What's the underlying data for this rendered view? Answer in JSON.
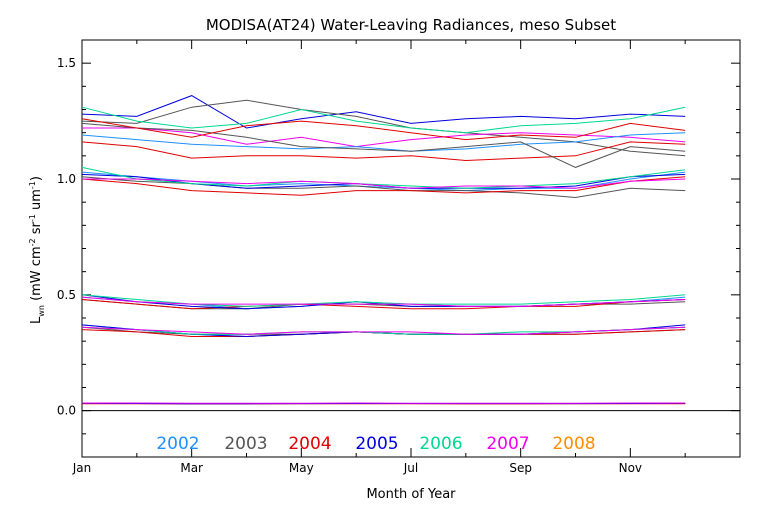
{
  "chart_data": {
    "type": "line",
    "title": "MODISA(AT24) Water-Leaving Radiances, meso Subset",
    "xlabel": "Month of Year",
    "ylabel": {
      "main": "L",
      "sub": "wn",
      "rest": "  (mW cm",
      "sup1": "-2",
      "rest2": " sr",
      "sup2": "-1",
      "rest3": " um",
      "sup3": "-1",
      "close": ")"
    },
    "xlim": [
      1,
      13
    ],
    "ylim": [
      -0.2,
      1.6
    ],
    "x_ticks": [
      {
        "value": 1,
        "label": "Jan"
      },
      {
        "value": 3,
        "label": "Mar"
      },
      {
        "value": 5,
        "label": "May"
      },
      {
        "value": 7,
        "label": "Jul"
      },
      {
        "value": 9,
        "label": "Sep"
      },
      {
        "value": 11,
        "label": "Nov"
      }
    ],
    "y_ticks": [
      {
        "value": 0.0,
        "label": "0.0"
      },
      {
        "value": 0.5,
        "label": "0.5"
      },
      {
        "value": 1.0,
        "label": "1.0"
      },
      {
        "value": 1.5,
        "label": "1.5"
      }
    ],
    "zero_line": 0.0,
    "legend_placement": "bottom-inside",
    "legend": [
      {
        "label": "2002",
        "color": "#1e90ff"
      },
      {
        "label": "2003",
        "color": "#555555"
      },
      {
        "label": "2004",
        "color": "#e00000"
      },
      {
        "label": "2005",
        "color": "#0000dd"
      },
      {
        "label": "2006",
        "color": "#00d890"
      },
      {
        "label": "2007",
        "color": "#ee00ee"
      },
      {
        "label": "2008",
        "color": "#ff8c00"
      }
    ],
    "x": [
      1,
      2,
      3,
      4,
      5,
      6,
      7,
      8,
      9,
      10,
      11,
      12
    ],
    "bands": [
      {
        "band": "high",
        "series": [
          {
            "color": "#0000dd",
            "values": [
              1.28,
              1.27,
              1.36,
              1.22,
              1.26,
              1.29,
              1.24,
              1.26,
              1.27,
              1.26,
              1.28,
              1.27
            ]
          },
          {
            "color": "#555555",
            "values": [
              1.25,
              1.24,
              1.31,
              1.34,
              1.3,
              1.27,
              1.22,
              1.2,
              1.18,
              1.16,
              1.12,
              1.1
            ]
          },
          {
            "color": "#00d890",
            "values": [
              1.31,
              1.25,
              1.22,
              1.24,
              1.3,
              1.25,
              1.22,
              1.2,
              1.23,
              1.24,
              1.26,
              1.31
            ]
          },
          {
            "color": "#ee00ee",
            "values": [
              1.22,
              1.22,
              1.2,
              1.15,
              1.18,
              1.14,
              1.17,
              1.19,
              1.2,
              1.19,
              1.18,
              1.16
            ]
          },
          {
            "color": "#e00000",
            "values": [
              1.16,
              1.14,
              1.09,
              1.1,
              1.1,
              1.09,
              1.1,
              1.08,
              1.09,
              1.1,
              1.16,
              1.15
            ]
          },
          {
            "color": "#1e90ff",
            "values": [
              1.19,
              1.17,
              1.15,
              1.14,
              1.13,
              1.14,
              1.12,
              1.13,
              1.15,
              1.16,
              1.19,
              1.2
            ]
          },
          {
            "color": "#555555",
            "values": [
              1.24,
              1.22,
              1.21,
              1.18,
              1.14,
              1.13,
              1.12,
              1.14,
              1.16,
              1.05,
              1.14,
              1.12
            ]
          },
          {
            "color": "#e00000",
            "values": [
              1.26,
              1.22,
              1.18,
              1.23,
              1.25,
              1.23,
              1.2,
              1.17,
              1.19,
              1.18,
              1.24,
              1.21
            ]
          }
        ]
      },
      {
        "band": "upper-mid",
        "series": [
          {
            "color": "#1e90ff",
            "values": [
              1.03,
              1.01,
              0.99,
              0.97,
              0.98,
              0.97,
              0.96,
              0.95,
              0.96,
              0.96,
              1.0,
              1.03
            ]
          },
          {
            "color": "#555555",
            "values": [
              1.01,
              0.99,
              0.98,
              0.96,
              0.96,
              0.97,
              0.95,
              0.95,
              0.94,
              0.92,
              0.96,
              0.95
            ]
          },
          {
            "color": "#e00000",
            "values": [
              1.0,
              0.98,
              0.95,
              0.94,
              0.93,
              0.95,
              0.95,
              0.94,
              0.95,
              0.95,
              0.99,
              1.01
            ]
          },
          {
            "color": "#0000dd",
            "values": [
              1.02,
              1.01,
              0.98,
              0.96,
              0.97,
              0.98,
              0.96,
              0.96,
              0.96,
              0.97,
              1.01,
              1.02
            ]
          },
          {
            "color": "#00d890",
            "values": [
              1.05,
              1.0,
              0.98,
              0.97,
              0.99,
              0.98,
              0.97,
              0.96,
              0.97,
              0.98,
              1.01,
              1.04
            ]
          },
          {
            "color": "#ee00ee",
            "values": [
              1.0,
              1.0,
              0.99,
              0.98,
              0.99,
              0.98,
              0.96,
              0.97,
              0.97,
              0.96,
              0.99,
              1.0
            ]
          }
        ]
      },
      {
        "band": "lower-mid",
        "series": [
          {
            "color": "#1e90ff",
            "values": [
              0.49,
              0.47,
              0.46,
              0.44,
              0.45,
              0.47,
              0.46,
              0.45,
              0.45,
              0.46,
              0.47,
              0.49
            ]
          },
          {
            "color": "#555555",
            "values": [
              0.48,
              0.46,
              0.44,
              0.44,
              0.46,
              0.46,
              0.45,
              0.45,
              0.45,
              0.46,
              0.46,
              0.47
            ]
          },
          {
            "color": "#e00000",
            "values": [
              0.48,
              0.46,
              0.44,
              0.45,
              0.46,
              0.45,
              0.44,
              0.44,
              0.45,
              0.45,
              0.47,
              0.48
            ]
          },
          {
            "color": "#0000dd",
            "values": [
              0.5,
              0.47,
              0.45,
              0.44,
              0.45,
              0.47,
              0.45,
              0.45,
              0.45,
              0.46,
              0.47,
              0.48
            ]
          },
          {
            "color": "#00d890",
            "values": [
              0.5,
              0.48,
              0.46,
              0.45,
              0.46,
              0.47,
              0.46,
              0.46,
              0.46,
              0.47,
              0.48,
              0.5
            ]
          },
          {
            "color": "#ee00ee",
            "values": [
              0.49,
              0.47,
              0.46,
              0.46,
              0.46,
              0.46,
              0.46,
              0.45,
              0.45,
              0.46,
              0.47,
              0.48
            ]
          }
        ]
      },
      {
        "band": "low",
        "series": [
          {
            "color": "#1e90ff",
            "values": [
              0.37,
              0.35,
              0.33,
              0.32,
              0.33,
              0.34,
              0.33,
              0.33,
              0.33,
              0.34,
              0.35,
              0.36
            ]
          },
          {
            "color": "#555555",
            "values": [
              0.36,
              0.34,
              0.33,
              0.33,
              0.33,
              0.34,
              0.33,
              0.33,
              0.33,
              0.33,
              0.34,
              0.35
            ]
          },
          {
            "color": "#e00000",
            "values": [
              0.35,
              0.34,
              0.32,
              0.32,
              0.33,
              0.34,
              0.33,
              0.33,
              0.33,
              0.33,
              0.34,
              0.35
            ]
          },
          {
            "color": "#0000dd",
            "values": [
              0.37,
              0.35,
              0.33,
              0.32,
              0.33,
              0.34,
              0.33,
              0.33,
              0.33,
              0.34,
              0.35,
              0.37
            ]
          },
          {
            "color": "#00d890",
            "values": [
              0.36,
              0.35,
              0.33,
              0.33,
              0.34,
              0.34,
              0.33,
              0.33,
              0.34,
              0.34,
              0.35,
              0.36
            ]
          },
          {
            "color": "#ee00ee",
            "values": [
              0.36,
              0.35,
              0.34,
              0.33,
              0.34,
              0.34,
              0.34,
              0.33,
              0.33,
              0.34,
              0.35,
              0.36
            ]
          }
        ]
      },
      {
        "band": "near-zero",
        "series": [
          {
            "color": "#1e90ff",
            "values": [
              0.031,
              0.031,
              0.03,
              0.03,
              0.03,
              0.031,
              0.031,
              0.03,
              0.03,
              0.03,
              0.031,
              0.031
            ]
          },
          {
            "color": "#e00000",
            "values": [
              0.03,
              0.03,
              0.029,
              0.029,
              0.03,
              0.03,
              0.03,
              0.029,
              0.029,
              0.03,
              0.03,
              0.03
            ]
          },
          {
            "color": "#0000dd",
            "values": [
              0.032,
              0.031,
              0.03,
              0.03,
              0.031,
              0.031,
              0.031,
              0.031,
              0.031,
              0.031,
              0.031,
              0.032
            ]
          },
          {
            "color": "#ee00ee",
            "values": [
              0.033,
              0.033,
              0.032,
              0.032,
              0.032,
              0.033,
              0.032,
              0.032,
              0.032,
              0.032,
              0.033,
              0.033
            ]
          }
        ]
      }
    ]
  }
}
